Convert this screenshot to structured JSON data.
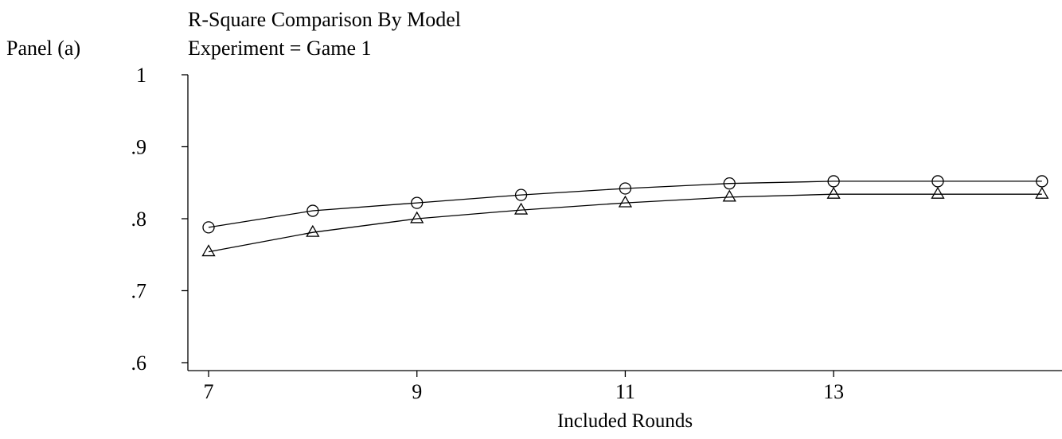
{
  "panel_label": "Panel (a)",
  "chart_data": {
    "type": "line",
    "title": "R-Square Comparison By Model",
    "subtitle": "Experiment = Game 1",
    "xlabel": "Included Rounds",
    "ylabel": "",
    "x": [
      7,
      8,
      9,
      10,
      11,
      12,
      13,
      14,
      15
    ],
    "xlim": [
      7,
      15.2
    ],
    "ylim": [
      0.6,
      1.0
    ],
    "xticks": [
      7,
      9,
      11,
      13
    ],
    "xtick_labels": [
      "7",
      "9",
      "11",
      "13"
    ],
    "yticks": [
      0.6,
      0.7,
      0.8,
      0.9,
      1.0
    ],
    "ytick_labels": [
      ".6",
      ".7",
      ".8",
      ".9",
      "1"
    ],
    "grid": false,
    "legend": "none",
    "series": [
      {
        "marker": "circle",
        "values": [
          0.788,
          0.811,
          0.822,
          0.833,
          0.842,
          0.849,
          0.852,
          0.852,
          0.852
        ]
      },
      {
        "marker": "triangle",
        "values": [
          0.754,
          0.781,
          0.8,
          0.812,
          0.822,
          0.83,
          0.834,
          0.834,
          0.834
        ]
      }
    ]
  }
}
